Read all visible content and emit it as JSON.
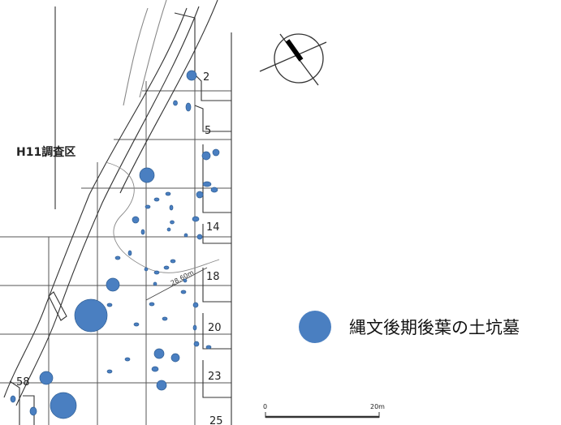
{
  "map": {
    "survey_area_label": "H11調査区",
    "grid_numbers": [
      "2",
      "5",
      "14",
      "18",
      "20",
      "23",
      "58",
      "25"
    ],
    "contour_label": "28.60m",
    "legend": {
      "label": "縄文後期後葉の土坑墓",
      "color": "#4a7fc1"
    },
    "scale_bar": {
      "start": "0",
      "end": "20m"
    },
    "icons": [
      "north-arrow-icon"
    ],
    "colors": {
      "pit": "#4a7fc1",
      "pit_outline": "#2f5e94",
      "line": "#333333"
    }
  }
}
